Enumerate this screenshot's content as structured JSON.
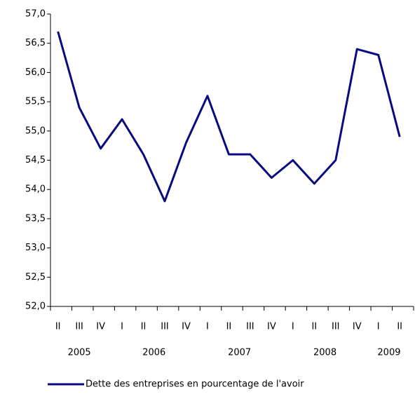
{
  "chart_data": {
    "type": "line",
    "categories": [
      "II",
      "III",
      "IV",
      "I",
      "II",
      "III",
      "IV",
      "I",
      "II",
      "III",
      "IV",
      "I",
      "II",
      "III",
      "IV",
      "I",
      "II"
    ],
    "x_groups": [
      "2005",
      "2006",
      "2007",
      "2008",
      "2009"
    ],
    "series": [
      {
        "name": "Dette des entreprises en pourcentage de l'avoir",
        "color": "#0a0a80",
        "values": [
          56.7,
          55.4,
          54.7,
          55.2,
          54.6,
          53.8,
          54.8,
          55.6,
          54.6,
          54.6,
          54.2,
          54.5,
          54.1,
          54.5,
          56.4,
          56.3,
          54.9
        ]
      }
    ],
    "ylim": [
      52,
      57
    ],
    "yticks": [
      {
        "value": 52,
        "label": "52,0"
      },
      {
        "value": 52.5,
        "label": "52,5"
      },
      {
        "value": 53,
        "label": "53,0"
      },
      {
        "value": 53.5,
        "label": "53,5"
      },
      {
        "value": 54,
        "label": "54,0"
      },
      {
        "value": 54.5,
        "label": "54,5"
      },
      {
        "value": 55,
        "label": "55,0"
      },
      {
        "value": 55.5,
        "label": "55,5"
      },
      {
        "value": 56,
        "label": "56,0"
      },
      {
        "value": 56.5,
        "label": "56,5"
      },
      {
        "value": 57,
        "label": "57,0"
      }
    ],
    "grid": false
  }
}
